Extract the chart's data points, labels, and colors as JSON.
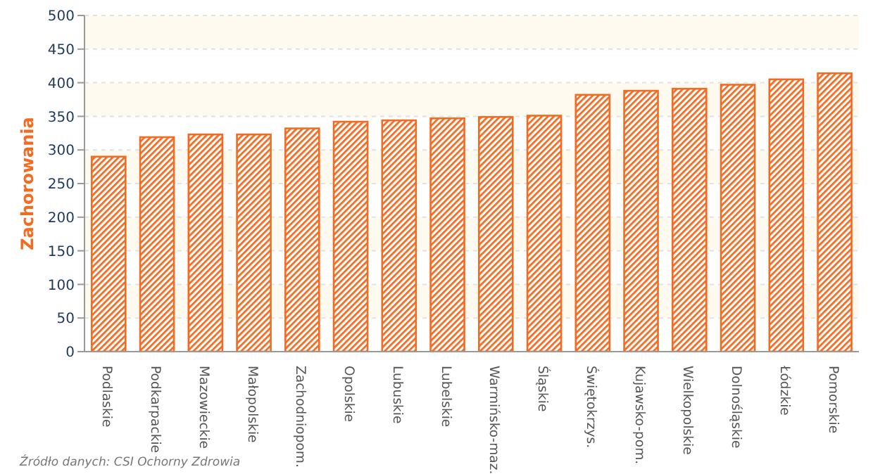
{
  "chart_data": {
    "type": "bar",
    "ylabel": "Zachorowania",
    "categories": [
      "Podlaskie",
      "Podkarpackie",
      "Mazowieckie",
      "Małopolskie",
      "Zachodniopom.",
      "Opolskie",
      "Lubuskie",
      "Lubelskie",
      "Warmińsko-maz.",
      "Śląskie",
      "Świętokrzys.",
      "Kujawsko-pom.",
      "Wielkopolskie",
      "Dolnośląskie",
      "Łódzkie",
      "Pomorskie"
    ],
    "values": [
      290,
      319,
      323,
      323,
      332,
      342,
      344,
      347,
      349,
      351,
      382,
      388,
      391,
      397,
      405,
      414
    ],
    "color": "#f26b21",
    "ylim": [
      0,
      500
    ],
    "yticks": [
      0,
      50,
      100,
      150,
      200,
      250,
      300,
      350,
      400,
      450,
      500
    ],
    "grid": "y",
    "annotations": [
      "Źródło danych: CSI Ochorny Zdrowia"
    ]
  }
}
